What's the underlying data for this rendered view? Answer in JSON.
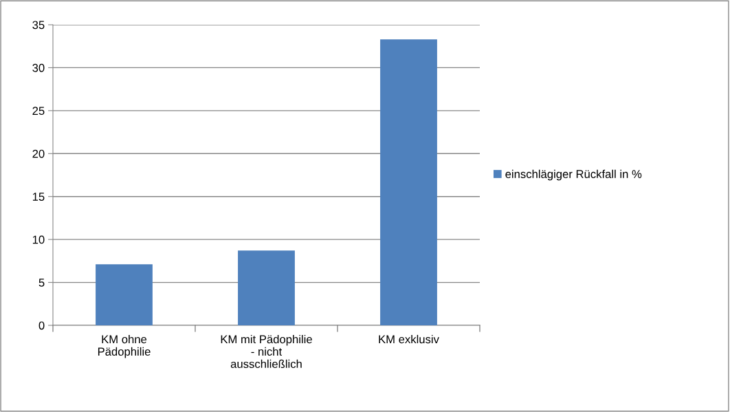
{
  "chart_data": {
    "type": "bar",
    "categories": [
      "KM ohne\nPädophilie",
      "KM mit Pädophilie\n- nicht\nausschließlich",
      "KM exklusiv"
    ],
    "series": [
      {
        "name": "einschlägiger Rückfall in %",
        "color": "#4f81bd",
        "values": [
          7.1,
          8.7,
          33.3
        ]
      }
    ],
    "ylim": [
      0,
      35
    ],
    "yticks": [
      0,
      5,
      10,
      15,
      20,
      25,
      30,
      35
    ],
    "grid": "y",
    "legend": "right"
  }
}
